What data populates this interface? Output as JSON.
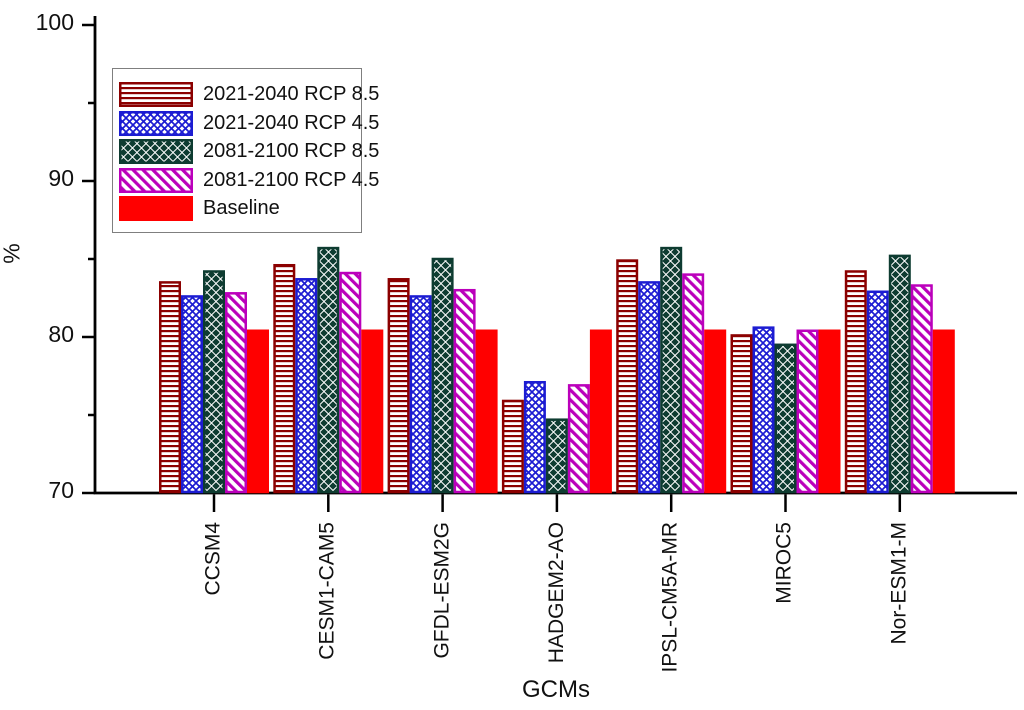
{
  "figure": {
    "background": "#ffffff"
  },
  "chart_data": {
    "type": "bar",
    "title": "",
    "xlabel": "GCMs",
    "ylabel": "%",
    "ylim": [
      70,
      100
    ],
    "yticks": [
      100,
      90,
      80,
      70
    ],
    "yticks_minor": [
      75,
      85,
      95
    ],
    "grid": false,
    "legend_position": "upper-left",
    "axis_color": "#000000",
    "categories": [
      "CCSM4",
      "CESM1-CAM5",
      "GFDL-ESM2G",
      "HADGEM2-AO",
      "IPSL-CM5A-MR",
      "MIROC5",
      "Nor-ESM1-M"
    ],
    "series": [
      {
        "name": "2021-2040 RCP 8.5",
        "color": "#8b0000",
        "pattern": "horizontal-lines",
        "values": [
          83.5,
          84.6,
          83.7,
          75.9,
          84.9,
          80.1,
          84.2
        ]
      },
      {
        "name": "2021-2040 RCP 4.5",
        "color": "#1c1cd2",
        "pattern": "crosshatch",
        "values": [
          82.6,
          83.7,
          82.6,
          77.1,
          83.5,
          80.6,
          82.9
        ]
      },
      {
        "name": "2081-2100 RCP 8.5",
        "color": "#0e3c31",
        "pattern": "diamond-dots",
        "values": [
          84.2,
          85.7,
          85.0,
          74.7,
          85.7,
          79.5,
          85.2
        ]
      },
      {
        "name": "2081-2100 RCP 4.5",
        "color": "#bb00bb",
        "pattern": "diagonal-stripes",
        "values": [
          82.8,
          84.1,
          83.0,
          76.9,
          84.0,
          80.4,
          83.3
        ]
      },
      {
        "name": "Baseline",
        "color": "#ff0000",
        "pattern": "solid",
        "values": [
          80.4,
          80.4,
          80.4,
          80.4,
          80.4,
          80.4,
          80.4
        ]
      }
    ]
  }
}
